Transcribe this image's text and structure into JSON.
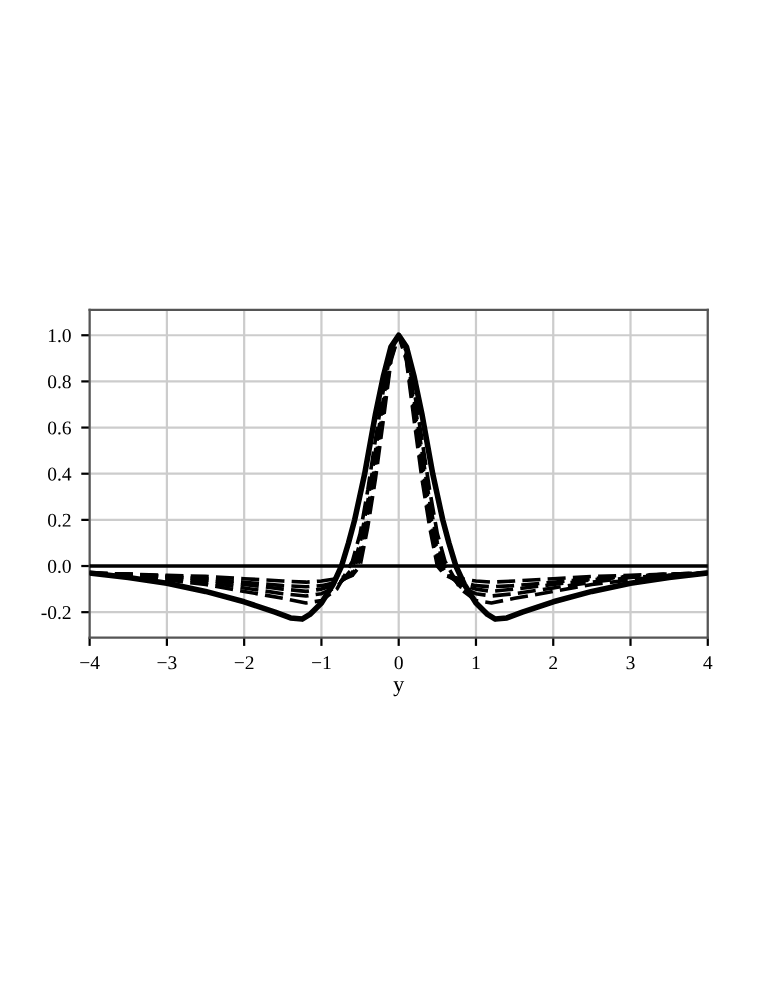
{
  "chart_data": {
    "type": "line",
    "xlabel": "y",
    "xlim": [
      -4,
      4
    ],
    "ylim": [
      -0.31,
      1.11
    ],
    "xticks": [
      {
        "value": -4,
        "label": "−4"
      },
      {
        "value": -3,
        "label": "−3"
      },
      {
        "value": -2,
        "label": "−2"
      },
      {
        "value": -1,
        "label": "−1"
      },
      0,
      1,
      2,
      3,
      4
    ],
    "yticks": [
      {
        "value": -0.2,
        "label": "-0.2"
      },
      {
        "value": 0,
        "label": "0.0"
      },
      {
        "value": 0.2,
        "label": "0.2"
      },
      {
        "value": 0.4,
        "label": "0.4"
      },
      {
        "value": 0.6,
        "label": "0.6"
      },
      {
        "value": 0.8,
        "label": "0.8"
      },
      {
        "value": 1,
        "label": "1.0"
      }
    ],
    "grid": true,
    "marker": "none",
    "ref_lines": [
      {
        "axis": "y",
        "value": 0,
        "color": "#000000",
        "line_style": "solid"
      }
    ],
    "series": [
      {
        "color": "#000000",
        "line_style": "solid",
        "x": [
          -4,
          -3.5,
          -3,
          -2.5,
          -2,
          -1.6,
          -1.4,
          -1.25,
          -1.15,
          -1.0,
          -0.85,
          -0.74,
          -0.65,
          -0.57,
          -0.44,
          -0.3,
          -0.2,
          -0.1,
          0,
          0.1,
          0.2,
          0.3,
          0.44,
          0.57,
          0.65,
          0.74,
          0.85,
          1.0,
          1.15,
          1.25,
          1.4,
          1.6,
          2,
          2.5,
          3,
          3.5,
          4
        ],
        "values": [
          -0.03,
          -0.05,
          -0.075,
          -0.11,
          -0.155,
          -0.2,
          -0.225,
          -0.23,
          -0.21,
          -0.16,
          -0.08,
          0.0,
          0.1,
          0.2,
          0.4,
          0.66,
          0.82,
          0.95,
          1.0,
          0.95,
          0.82,
          0.66,
          0.4,
          0.2,
          0.1,
          0.0,
          -0.08,
          -0.16,
          -0.21,
          -0.23,
          -0.225,
          -0.2,
          -0.155,
          -0.11,
          -0.075,
          -0.05,
          -0.03
        ]
      },
      {
        "color": "#000000",
        "line_style": "dashed",
        "x": [
          -4,
          -3.5,
          -3,
          -2.5,
          -2,
          -1.5,
          -1.2,
          -1,
          -0.8,
          -0.6,
          -0.5,
          -0.4,
          -0.3,
          -0.2,
          -0.1,
          0,
          0.1,
          0.2,
          0.3,
          0.4,
          0.5,
          0.6,
          0.8,
          1,
          1.2,
          1.5,
          2,
          2.5,
          3,
          3.5,
          4
        ],
        "values": [
          -0.03,
          -0.04,
          -0.06,
          -0.08,
          -0.11,
          -0.14,
          -0.16,
          -0.15,
          -0.1,
          0.02,
          0.14,
          0.33,
          0.55,
          0.76,
          0.93,
          1.0,
          0.93,
          0.76,
          0.55,
          0.33,
          0.14,
          0.02,
          -0.1,
          -0.15,
          -0.16,
          -0.14,
          -0.11,
          -0.08,
          -0.06,
          -0.04,
          -0.03
        ]
      },
      {
        "color": "#000000",
        "line_style": "dashed",
        "x": [
          -4,
          -3.5,
          -3,
          -2.5,
          -2,
          -1.5,
          -1.2,
          -1,
          -0.8,
          -0.6,
          -0.5,
          -0.4,
          -0.3,
          -0.2,
          -0.1,
          0,
          0.1,
          0.2,
          0.3,
          0.4,
          0.5,
          0.6,
          0.8,
          1,
          1.2,
          1.5,
          2,
          2.5,
          3,
          3.5,
          4
        ],
        "values": [
          -0.03,
          -0.04,
          -0.05,
          -0.07,
          -0.095,
          -0.12,
          -0.13,
          -0.12,
          -0.09,
          -0.01,
          0.1,
          0.28,
          0.5,
          0.72,
          0.92,
          1.0,
          0.92,
          0.72,
          0.5,
          0.28,
          0.1,
          -0.01,
          -0.09,
          -0.12,
          -0.13,
          -0.12,
          -0.095,
          -0.07,
          -0.05,
          -0.04,
          -0.03
        ]
      },
      {
        "color": "#000000",
        "line_style": "dashed",
        "x": [
          -4,
          -3.5,
          -3,
          -2.5,
          -2,
          -1.5,
          -1.2,
          -1,
          -0.8,
          -0.6,
          -0.5,
          -0.4,
          -0.3,
          -0.2,
          -0.1,
          0,
          0.1,
          0.2,
          0.3,
          0.4,
          0.5,
          0.6,
          0.8,
          1,
          1.2,
          1.5,
          2,
          2.5,
          3,
          3.5,
          4
        ],
        "values": [
          -0.03,
          -0.035,
          -0.045,
          -0.06,
          -0.08,
          -0.1,
          -0.11,
          -0.1,
          -0.08,
          -0.03,
          0.06,
          0.24,
          0.46,
          0.69,
          0.91,
          1.0,
          0.91,
          0.69,
          0.46,
          0.24,
          0.06,
          -0.03,
          -0.08,
          -0.1,
          -0.11,
          -0.1,
          -0.08,
          -0.06,
          -0.045,
          -0.035,
          -0.03
        ]
      },
      {
        "color": "#000000",
        "line_style": "dashed",
        "x": [
          -4,
          -3.5,
          -3,
          -2.5,
          -2,
          -1.5,
          -1.2,
          -1,
          -0.8,
          -0.6,
          -0.5,
          -0.4,
          -0.3,
          -0.2,
          -0.1,
          0,
          0.1,
          0.2,
          0.3,
          0.4,
          0.5,
          0.6,
          0.8,
          1,
          1.2,
          1.5,
          2,
          2.5,
          3,
          3.5,
          4
        ],
        "values": [
          -0.03,
          -0.035,
          -0.045,
          -0.055,
          -0.07,
          -0.085,
          -0.09,
          -0.085,
          -0.07,
          -0.04,
          0.03,
          0.2,
          0.42,
          0.66,
          0.9,
          1.0,
          0.9,
          0.66,
          0.42,
          0.2,
          0.03,
          -0.04,
          -0.07,
          -0.085,
          -0.09,
          -0.085,
          -0.07,
          -0.055,
          -0.045,
          -0.035,
          -0.03
        ]
      },
      {
        "color": "#000000",
        "line_style": "dashed",
        "x": [
          -4,
          -3.5,
          -3,
          -2.5,
          -2,
          -1.5,
          -1.2,
          -1,
          -0.8,
          -0.6,
          -0.5,
          -0.4,
          -0.3,
          -0.2,
          -0.1,
          0,
          0.1,
          0.2,
          0.3,
          0.4,
          0.5,
          0.6,
          0.8,
          1,
          1.2,
          1.5,
          2,
          2.5,
          3,
          3.5,
          4
        ],
        "values": [
          -0.03,
          -0.035,
          -0.04,
          -0.045,
          -0.055,
          -0.065,
          -0.07,
          -0.065,
          -0.055,
          -0.04,
          0.0,
          0.17,
          0.38,
          0.63,
          0.89,
          1.0,
          0.89,
          0.63,
          0.38,
          0.17,
          0.0,
          -0.04,
          -0.055,
          -0.065,
          -0.07,
          -0.065,
          -0.055,
          -0.045,
          -0.04,
          -0.035,
          -0.03
        ]
      }
    ]
  }
}
